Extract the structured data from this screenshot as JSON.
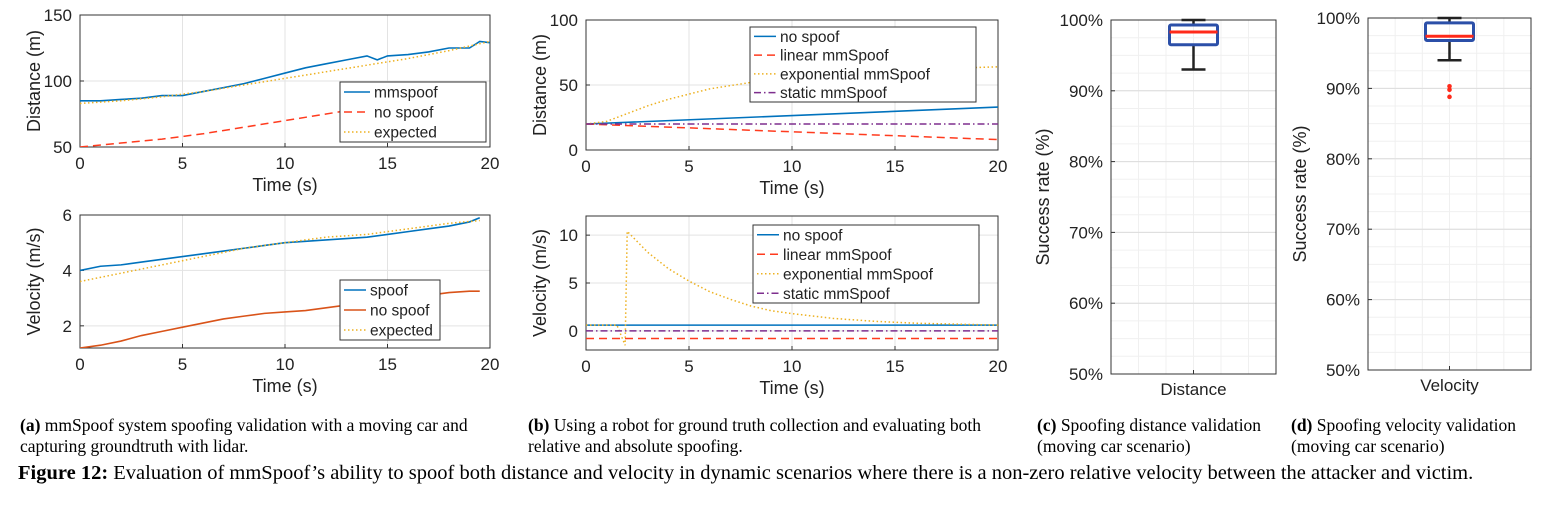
{
  "colors": {
    "blue": "#0072BD",
    "red": "#FF3B1E",
    "orange": "#D95319",
    "yellow": "#EDB120",
    "purple": "#7E2F8E",
    "box": "#2B4FA8",
    "median": "#FF2A1A",
    "whisker": "#222222",
    "outlier": "#FF2A1A"
  },
  "chart_data": [
    {
      "id": "a-top",
      "type": "line",
      "xlabel": "Time (s)",
      "ylabel": "Distance (m)",
      "xlim": [
        0,
        20
      ],
      "ylim": [
        50,
        150
      ],
      "xticks": [
        0,
        5,
        10,
        15,
        20
      ],
      "yticks": [
        50,
        100,
        150
      ],
      "grid": true,
      "legend": "bottom-right",
      "series": [
        {
          "name": "mmspoof",
          "color": "blue",
          "dash": "solid",
          "x": [
            0,
            1,
            2,
            3,
            4,
            5,
            6,
            7,
            8,
            9,
            10,
            11,
            12,
            13,
            14,
            14.5,
            15,
            16,
            17,
            18,
            19,
            19.5,
            20
          ],
          "y": [
            85,
            85,
            86,
            87,
            89,
            89,
            92,
            95,
            98,
            102,
            106,
            110,
            113,
            116,
            119,
            116,
            119,
            120,
            122,
            125,
            125,
            130,
            129
          ]
        },
        {
          "name": "no spoof",
          "color": "red",
          "dash": "dash",
          "x": [
            0,
            2,
            4,
            6,
            8,
            10,
            12,
            14,
            16,
            18,
            20
          ],
          "y": [
            50,
            53,
            56,
            60,
            65,
            70,
            75,
            80,
            86,
            92,
            99
          ]
        },
        {
          "name": "expected",
          "color": "yellow",
          "dash": "dot",
          "x": [
            0,
            2,
            4,
            6,
            8,
            10,
            12,
            14,
            16,
            18,
            20
          ],
          "y": [
            83,
            85,
            88,
            92,
            97,
            102,
            107,
            112,
            117,
            123,
            130
          ]
        }
      ]
    },
    {
      "id": "a-bottom",
      "type": "line",
      "xlabel": "Time (s)",
      "ylabel": "Velocity (m/s)",
      "xlim": [
        0,
        20
      ],
      "ylim": [
        1.2,
        6
      ],
      "xticks": [
        0,
        5,
        10,
        15,
        20
      ],
      "yticks": [
        2,
        4,
        6
      ],
      "grid": true,
      "legend": "bottom-right",
      "series": [
        {
          "name": "spoof",
          "color": "blue",
          "dash": "solid",
          "x": [
            0,
            1,
            2,
            3,
            4,
            5,
            6,
            7,
            8,
            9,
            10,
            11,
            12,
            13,
            14,
            15,
            16,
            17,
            18,
            19,
            19.5
          ],
          "y": [
            4.0,
            4.15,
            4.2,
            4.3,
            4.4,
            4.5,
            4.6,
            4.7,
            4.8,
            4.9,
            5.0,
            5.05,
            5.1,
            5.15,
            5.2,
            5.3,
            5.4,
            5.5,
            5.6,
            5.75,
            5.9
          ]
        },
        {
          "name": "no spoof",
          "color": "orange",
          "dash": "solid",
          "x": [
            0,
            1,
            2,
            3,
            4,
            5,
            6,
            7,
            8,
            9,
            10,
            11,
            12,
            13,
            14,
            15,
            16,
            17,
            18,
            19,
            19.5
          ],
          "y": [
            1.2,
            1.3,
            1.45,
            1.65,
            1.8,
            1.95,
            2.1,
            2.25,
            2.35,
            2.45,
            2.5,
            2.55,
            2.65,
            2.75,
            2.8,
            2.9,
            3.0,
            3.1,
            3.2,
            3.25,
            3.25
          ]
        },
        {
          "name": "expected",
          "color": "yellow",
          "dash": "dot",
          "x": [
            0,
            2,
            4,
            6,
            8,
            10,
            12,
            14,
            16,
            18,
            19.5
          ],
          "y": [
            3.6,
            3.9,
            4.2,
            4.5,
            4.8,
            5.0,
            5.2,
            5.3,
            5.5,
            5.7,
            5.8
          ]
        }
      ]
    },
    {
      "id": "b-top",
      "type": "line",
      "xlabel": "Time (s)",
      "ylabel": "Distance (m)",
      "xlim": [
        0,
        20
      ],
      "ylim": [
        0,
        100
      ],
      "xticks": [
        0,
        5,
        10,
        15,
        20
      ],
      "yticks": [
        0,
        50,
        100
      ],
      "grid": true,
      "legend": "top-right",
      "series": [
        {
          "name": "no spoof",
          "color": "blue",
          "dash": "solid",
          "x": [
            0,
            20
          ],
          "y": [
            20,
            33
          ]
        },
        {
          "name": "linear mmSpoof",
          "color": "red",
          "dash": "dash",
          "x": [
            0,
            20
          ],
          "y": [
            20,
            8
          ]
        },
        {
          "name": "exponential mmSpoof",
          "color": "yellow",
          "dash": "dot",
          "x": [
            0,
            1,
            2,
            3,
            4,
            5,
            6,
            8,
            10,
            12,
            14,
            16,
            18,
            20
          ],
          "y": [
            20,
            22,
            28,
            34,
            39,
            43,
            47,
            52,
            56,
            59,
            61,
            62,
            63,
            64
          ]
        },
        {
          "name": "static mmSpoof",
          "color": "purple",
          "dash": "dashdot",
          "x": [
            0,
            20
          ],
          "y": [
            20,
            20
          ]
        }
      ]
    },
    {
      "id": "b-bottom",
      "type": "line",
      "xlabel": "Time (s)",
      "ylabel": "Velocity (m/s)",
      "xlim": [
        0,
        20
      ],
      "ylim": [
        -2,
        12
      ],
      "xticks": [
        0,
        5,
        10,
        15,
        20
      ],
      "yticks": [
        0,
        5,
        10
      ],
      "grid": true,
      "legend": "top-right",
      "series": [
        {
          "name": "no spoof",
          "color": "blue",
          "dash": "solid",
          "x": [
            0,
            20
          ],
          "y": [
            0.6,
            0.6
          ]
        },
        {
          "name": "linear mmSpoof",
          "color": "red",
          "dash": "dash",
          "x": [
            0,
            20
          ],
          "y": [
            -0.8,
            -0.8
          ]
        },
        {
          "name": "exponential mmSpoof",
          "color": "yellow",
          "dash": "dot",
          "x": [
            0,
            1.5,
            1.9,
            2.0,
            3,
            4,
            5,
            6,
            7,
            8,
            9,
            10,
            12,
            14,
            16,
            18,
            20
          ],
          "y": [
            0.6,
            0.6,
            -1.5,
            10.4,
            8.2,
            6.5,
            5.2,
            4.1,
            3.3,
            2.6,
            2.1,
            1.8,
            1.3,
            1.0,
            0.8,
            0.7,
            0.6
          ]
        },
        {
          "name": "static mmSpoof",
          "color": "purple",
          "dash": "dashdot",
          "x": [
            0,
            20
          ],
          "y": [
            0,
            0
          ]
        }
      ]
    },
    {
      "id": "c",
      "type": "box",
      "category": "Distance",
      "ylabel": "Success rate (%)",
      "ylim": [
        50,
        100
      ],
      "yticks": [
        "50%",
        "60%",
        "70%",
        "80%",
        "90%",
        "100%"
      ],
      "grid": true,
      "min": 93,
      "q1": 96.5,
      "median": 98.3,
      "q3": 99.3,
      "max": 100,
      "outliers": []
    },
    {
      "id": "d",
      "type": "box",
      "category": "Velocity",
      "ylabel": "Success rate (%)",
      "ylim": [
        50,
        100
      ],
      "yticks": [
        "50%",
        "60%",
        "70%",
        "80%",
        "90%",
        "100%"
      ],
      "grid": true,
      "min": 94,
      "q1": 96.8,
      "median": 97.4,
      "q3": 99.3,
      "max": 100,
      "outliers": [
        90.3,
        89.8,
        88.8
      ]
    }
  ],
  "captions": {
    "a": {
      "label": "(a)",
      "text": "mmSpoof system spoofing validation with a moving car and capturing groundtruth with lidar."
    },
    "b": {
      "label": "(b)",
      "text": "Using a robot for ground truth collection and evaluating both relative and absolute spoofing."
    },
    "c": {
      "label": "(c)",
      "text": "Spoofing distance validation (moving car scenario)"
    },
    "d": {
      "label": "(d)",
      "text": "Spoofing velocity validation (moving car scenario)"
    },
    "figure": {
      "label": "Figure 12:",
      "text": "Evaluation of mmSpoof’s ability to spoof both distance and velocity in dynamic scenarios where there is a non-zero relative velocity between the attacker and victim."
    }
  }
}
